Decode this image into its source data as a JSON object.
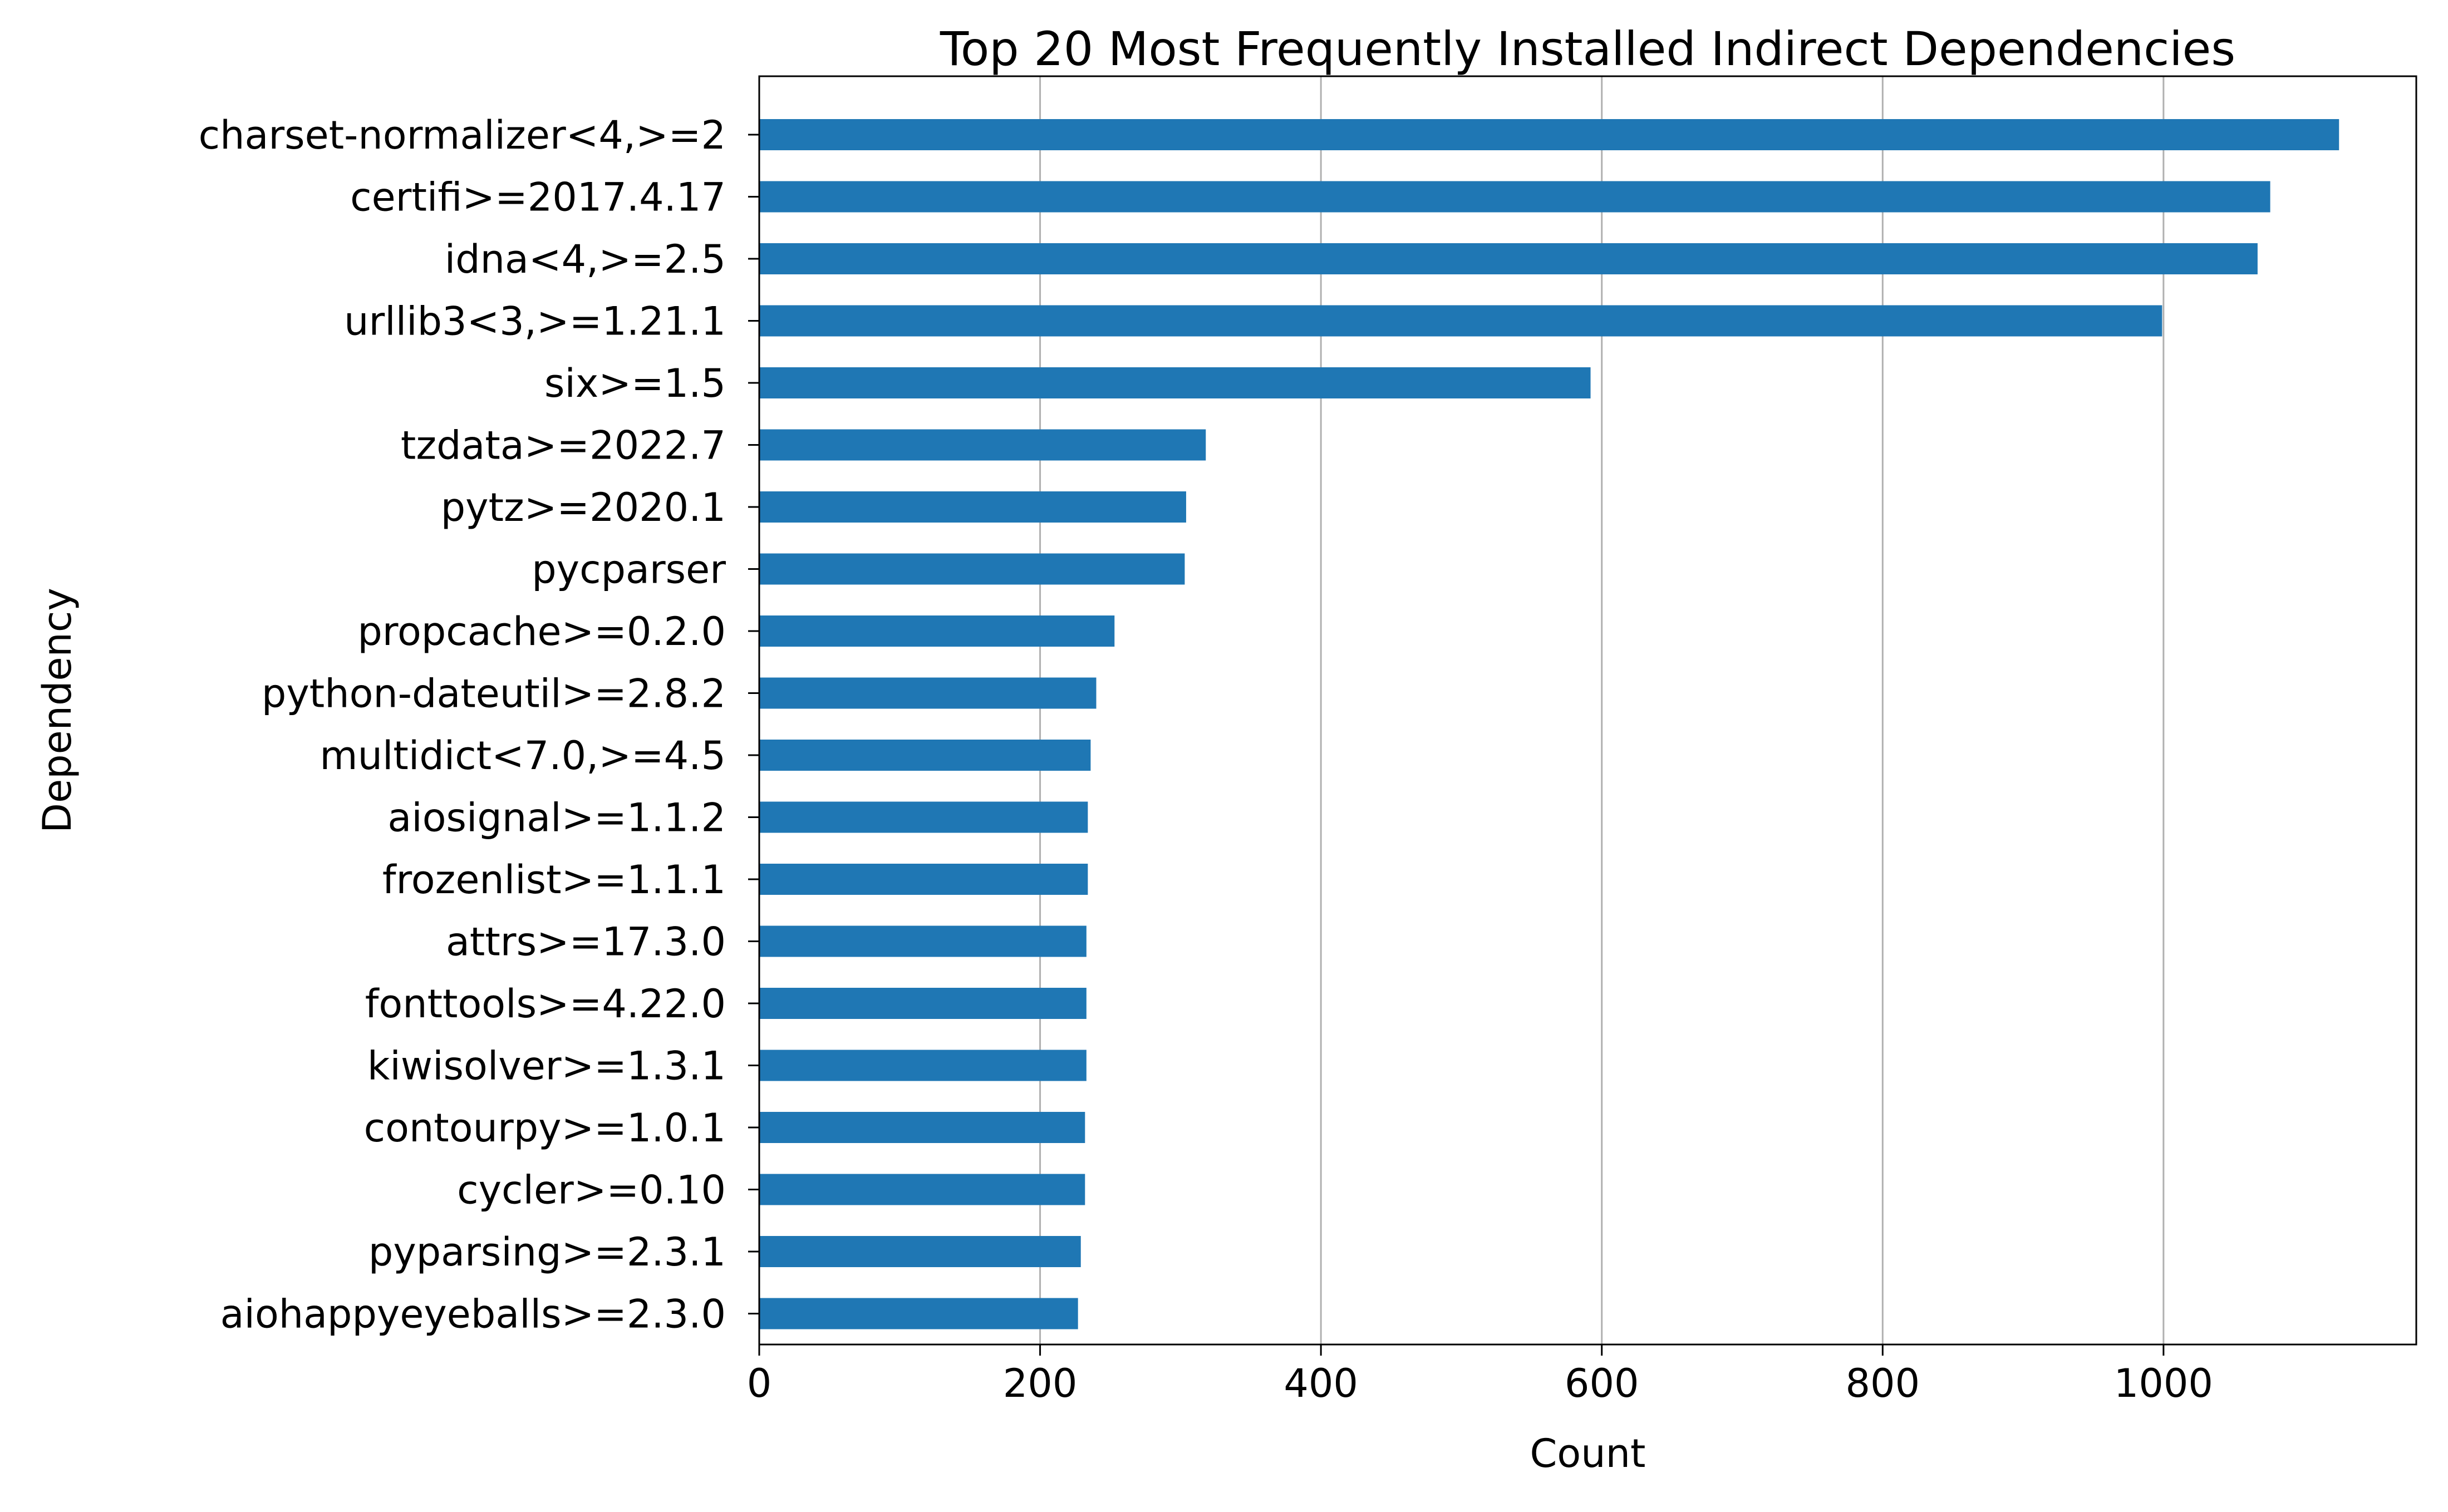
{
  "chart_data": {
    "type": "bar",
    "orientation": "horizontal",
    "title": "Top 20 Most Frequently Installed Indirect Dependencies",
    "xlabel": "Count",
    "ylabel": "Dependency",
    "categories": [
      "charset-normalizer<4,>=2",
      "certifi>=2017.4.17",
      "idna<4,>=2.5",
      "urllib3<3,>=1.21.1",
      "six>=1.5",
      "tzdata>=2022.7",
      "pytz>=2020.1",
      "pycparser",
      "propcache>=0.2.0",
      "python-dateutil>=2.8.2",
      "multidict<7.0,>=4.5",
      "aiosignal>=1.1.2",
      "frozenlist>=1.1.1",
      "attrs>=17.3.0",
      "fonttools>=4.22.0",
      "kiwisolver>=1.3.1",
      "contourpy>=1.0.1",
      "cycler>=0.10",
      "pyparsing>=2.3.1",
      "aiohappyeyeballs>=2.3.0"
    ],
    "values": [
      1125,
      1076,
      1067,
      999,
      592,
      318,
      304,
      303,
      253,
      240,
      236,
      234,
      234,
      233,
      233,
      233,
      232,
      232,
      229,
      227
    ],
    "xlim": [
      0,
      1180
    ],
    "xticks": [
      0,
      200,
      400,
      600,
      800,
      1000
    ],
    "grid": "x",
    "bar_color": "#1f77b4",
    "grid_color": "#b0b0b0"
  }
}
